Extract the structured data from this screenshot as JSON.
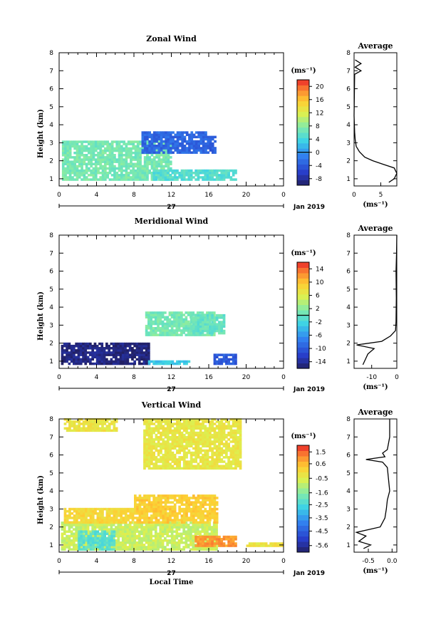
{
  "chart_data": [
    {
      "type": "heatmap",
      "title": "Zonal Wind",
      "xlabel": "",
      "ylabel": "Height (km)",
      "xticks": [
        "0",
        "4",
        "8",
        "12",
        "16",
        "20",
        "0"
      ],
      "xlim": [
        0,
        24
      ],
      "ylim": [
        0.6,
        8
      ],
      "yticks": [
        "1",
        "2",
        "3",
        "4",
        "5",
        "6",
        "7",
        "8"
      ],
      "date_day": "27",
      "date_month": "Jan 2019",
      "colorbar": {
        "unit": "(ms⁻¹)",
        "ticks": [
          "20",
          "16",
          "12",
          "8",
          "4",
          "0",
          "-4",
          "-8"
        ],
        "min": -10,
        "max": 22
      },
      "regions": [
        {
          "x0": 0.3,
          "x1": 12,
          "y0": 0.9,
          "y1": 3.1,
          "value": 7
        },
        {
          "x0": 10,
          "x1": 19,
          "y0": 0.9,
          "y1": 1.5,
          "value": 5
        },
        {
          "x0": 8.8,
          "x1": 15.8,
          "y0": 2.4,
          "y1": 3.6,
          "value": -3
        },
        {
          "x0": 15.8,
          "x1": 16.7,
          "y0": 2.4,
          "y1": 3.3,
          "value": -4
        }
      ],
      "average": {
        "title": "Average",
        "xlabel": "(ms⁻¹)",
        "xticks": [
          "0",
          "5"
        ],
        "xlim": [
          0,
          8
        ],
        "profile": [
          {
            "height": 0.8,
            "value": 6.5
          },
          {
            "height": 1.0,
            "value": 7.5
          },
          {
            "height": 1.3,
            "value": 8.0
          },
          {
            "height": 1.6,
            "value": 7.5
          },
          {
            "height": 1.8,
            "value": 5.5
          },
          {
            "height": 2.0,
            "value": 3.5
          },
          {
            "height": 2.2,
            "value": 2.0
          },
          {
            "height": 2.5,
            "value": 1.0
          },
          {
            "height": 2.8,
            "value": 0.4
          },
          {
            "height": 3.2,
            "value": 0.2
          },
          {
            "height": 3.6,
            "value": 0.1
          },
          {
            "height": 4.5,
            "value": 0.0
          },
          {
            "height": 6.8,
            "value": 0.1
          },
          {
            "height": 7.0,
            "value": 1.3
          },
          {
            "height": 7.2,
            "value": 0.2
          },
          {
            "height": 7.4,
            "value": 1.3
          },
          {
            "height": 7.6,
            "value": 0.2
          }
        ]
      }
    },
    {
      "type": "heatmap",
      "title": "Meridional Wind",
      "xlabel": "",
      "ylabel": "Height (km)",
      "xticks": [
        "0",
        "4",
        "8",
        "12",
        "16",
        "20",
        "0"
      ],
      "xlim": [
        0,
        24
      ],
      "ylim": [
        0.6,
        8
      ],
      "yticks": [
        "1",
        "2",
        "3",
        "4",
        "5",
        "6",
        "7",
        "8"
      ],
      "date_day": "27",
      "date_month": "Jan 2019",
      "colorbar": {
        "unit": "(ms⁻¹)",
        "ticks": [
          "14",
          "10",
          "6",
          "2",
          "-2",
          "-6",
          "-10",
          "-14"
        ],
        "min": -16,
        "max": 16
      },
      "regions": [
        {
          "x0": 0.2,
          "x1": 9.5,
          "y0": 0.8,
          "y1": 2.0,
          "value": -15
        },
        {
          "x0": 9.5,
          "x1": 14,
          "y0": 0.8,
          "y1": 1.0,
          "value": -3
        },
        {
          "x0": 16.5,
          "x1": 19,
          "y0": 0.8,
          "y1": 1.3,
          "value": -10
        },
        {
          "x0": 9.2,
          "x1": 16.5,
          "y0": 2.4,
          "y1": 3.7,
          "value": 1
        },
        {
          "x0": 14,
          "x1": 17.6,
          "y0": 2.5,
          "y1": 3.5,
          "value": 0
        }
      ],
      "average": {
        "title": "Average",
        "xlabel": "(ms⁻¹)",
        "xticks": [
          "-10",
          "0"
        ],
        "xlim": [
          -17,
          0
        ],
        "profile": [
          {
            "height": 0.8,
            "value": -13.5
          },
          {
            "height": 1.1,
            "value": -12.5
          },
          {
            "height": 1.4,
            "value": -11.5
          },
          {
            "height": 1.7,
            "value": -9.0
          },
          {
            "height": 1.9,
            "value": -16.0
          },
          {
            "height": 2.1,
            "value": -6.0
          },
          {
            "height": 2.4,
            "value": -2.5
          },
          {
            "height": 2.7,
            "value": -0.5
          },
          {
            "height": 3.2,
            "value": -0.3
          },
          {
            "height": 4.5,
            "value": -0.2
          },
          {
            "height": 6.0,
            "value": -0.3
          },
          {
            "height": 7.0,
            "value": -0.1
          },
          {
            "height": 8.0,
            "value": 0.0
          }
        ]
      }
    },
    {
      "type": "heatmap",
      "title": "Vertical Wind",
      "xlabel": "Local Time",
      "ylabel": "Height (km)",
      "xticks": [
        "0",
        "4",
        "8",
        "12",
        "16",
        "20",
        "0"
      ],
      "xlim": [
        0,
        24
      ],
      "ylim": [
        0.6,
        8
      ],
      "yticks": [
        "1",
        "2",
        "3",
        "4",
        "5",
        "6",
        "7",
        "8"
      ],
      "date_day": "27",
      "date_month": "Jan 2019",
      "colorbar": {
        "unit": "(ms⁻¹)",
        "ticks": [
          "1.5",
          "0.6",
          "-0.5",
          "-1.6",
          "-2.5",
          "-3.5",
          "-4.5",
          "-5.6"
        ],
        "min": -6.1,
        "max": 2.0
      },
      "regions": [
        {
          "x0": 0.2,
          "x1": 16.8,
          "y0": 0.7,
          "y1": 2.2,
          "value": -0.8
        },
        {
          "x0": 2,
          "x1": 6,
          "y0": 0.7,
          "y1": 1.8,
          "value": -2.2
        },
        {
          "x0": 8,
          "x1": 17,
          "y0": 2.2,
          "y1": 3.8,
          "value": 0.3
        },
        {
          "x0": 0.5,
          "x1": 8,
          "y0": 2.2,
          "y1": 3.0,
          "value": 0.1
        },
        {
          "x0": 14.5,
          "x1": 19,
          "y0": 0.9,
          "y1": 1.5,
          "value": 1.0
        },
        {
          "x0": 20,
          "x1": 24,
          "y0": 0.9,
          "y1": 1.1,
          "value": -0.2
        },
        {
          "x0": 9,
          "x1": 19.5,
          "y0": 5.2,
          "y1": 8.0,
          "value": -0.3
        },
        {
          "x0": 0.5,
          "x1": 6.2,
          "y0": 7.3,
          "y1": 8.0,
          "value": -0.2
        }
      ],
      "average": {
        "title": "Average",
        "xlabel": "(ms⁻¹)",
        "xticks": [
          "-0.5",
          "0.0"
        ],
        "xlim": [
          -0.8,
          0.1
        ],
        "profile": [
          {
            "height": 0.8,
            "value": -0.6
          },
          {
            "height": 1.0,
            "value": -0.45
          },
          {
            "height": 1.2,
            "value": -0.7
          },
          {
            "height": 1.5,
            "value": -0.55
          },
          {
            "height": 1.7,
            "value": -0.75
          },
          {
            "height": 2.0,
            "value": -0.25
          },
          {
            "height": 2.5,
            "value": -0.15
          },
          {
            "height": 3.0,
            "value": -0.12
          },
          {
            "height": 3.5,
            "value": -0.1
          },
          {
            "height": 4.0,
            "value": -0.05
          },
          {
            "height": 5.3,
            "value": -0.1
          },
          {
            "height": 5.6,
            "value": -0.2
          },
          {
            "height": 5.75,
            "value": -0.55
          },
          {
            "height": 5.9,
            "value": -0.15
          },
          {
            "height": 6.1,
            "value": -0.2
          },
          {
            "height": 6.3,
            "value": -0.1
          },
          {
            "height": 7.0,
            "value": -0.05
          },
          {
            "height": 8.0,
            "value": -0.05
          }
        ]
      }
    }
  ]
}
